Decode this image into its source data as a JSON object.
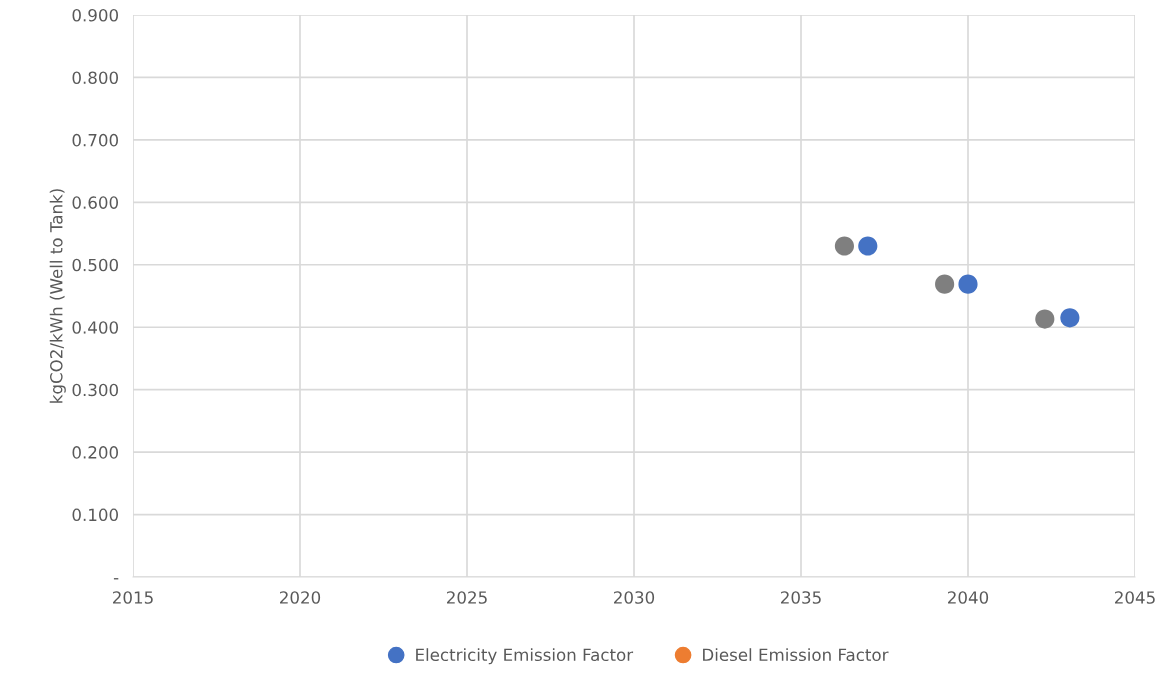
{
  "chart_data": {
    "type": "scatter",
    "ylabel": "kgCO2/kWh (Well to Tank)",
    "xlim": [
      2015,
      2045
    ],
    "xticks": [
      2015,
      2020,
      2025,
      2030,
      2035,
      2040,
      2045
    ],
    "ylim": [
      0,
      0.9
    ],
    "yticks": [
      {
        "value": 0,
        "label": "-"
      },
      {
        "value": 0.1,
        "label": "0.100"
      },
      {
        "value": 0.2,
        "label": "0.200"
      },
      {
        "value": 0.3,
        "label": "0.300"
      },
      {
        "value": 0.4,
        "label": "0.400"
      },
      {
        "value": 0.5,
        "label": "0.500"
      },
      {
        "value": 0.6,
        "label": "0.600"
      },
      {
        "value": 0.7,
        "label": "0.700"
      },
      {
        "value": 0.8,
        "label": "0.800"
      },
      {
        "value": 0.9,
        "label": "0.900"
      }
    ],
    "grid": true,
    "legend": "bottom",
    "marker": "circle",
    "series": [
      {
        "color": "#7f7f7f",
        "x": [
          2036.3,
          2039.3,
          2042.3
        ],
        "values": [
          0.53,
          0.469,
          0.413
        ]
      },
      {
        "name": "Electricity Emission Factor",
        "color": "#4472c4",
        "x": [
          2037.0,
          2040.0,
          2043.05
        ],
        "values": [
          0.53,
          0.469,
          0.415
        ]
      },
      {
        "name": "Diesel Emission Factor",
        "color": "#ed7d31"
      }
    ]
  }
}
